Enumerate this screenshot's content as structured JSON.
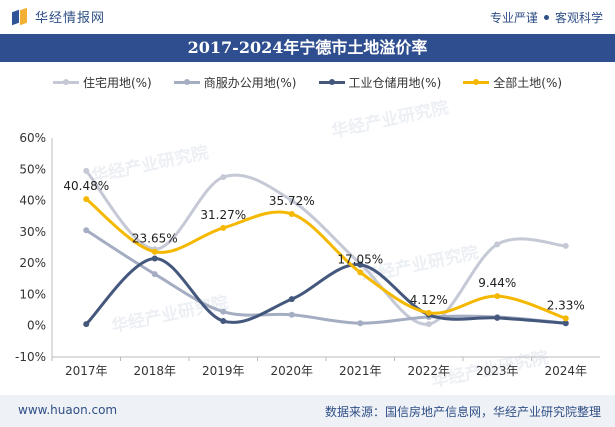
{
  "header": {
    "brand_name": "华经情报网",
    "tagline_left": "专业严谨",
    "tagline_right": "客观科学"
  },
  "watermark": "华经产业研究院",
  "colors": {
    "title_bar": "#2f4e8f",
    "brand": "#2f4f86",
    "footer_bg": "#eef1f6"
  },
  "chart_data": {
    "type": "line",
    "title": "2017-2024年宁德市土地溢价率",
    "categories": [
      "2017年",
      "2018年",
      "2019年",
      "2020年",
      "2021年",
      "2022年",
      "2023年",
      "2024年"
    ],
    "y_ticks": [
      "60%",
      "50%",
      "40%",
      "30%",
      "20%",
      "10%",
      "0%",
      "-10%"
    ],
    "ylim": [
      -10,
      60
    ],
    "y_unit": "%",
    "grid": false,
    "legend_position": "top",
    "series": [
      {
        "name": "住宅用地(%)",
        "color": "#c5c9d6",
        "values": [
          49.5,
          24.5,
          47.5,
          40.0,
          19.8,
          0.5,
          26.0,
          25.5
        ]
      },
      {
        "name": "商服办公用地(%)",
        "color": "#a4adc2",
        "values": [
          30.5,
          16.5,
          4.5,
          3.5,
          0.8,
          2.8,
          2.8,
          0.8
        ]
      },
      {
        "name": "工业仓储用地(%)",
        "color": "#44577c",
        "values": [
          0.5,
          21.5,
          1.5,
          8.5,
          19.5,
          3.5,
          2.5,
          0.8
        ]
      },
      {
        "name": "全部土地(%)",
        "color": "#f5b800",
        "values": [
          40.48,
          23.65,
          31.27,
          35.72,
          17.05,
          4.12,
          9.44,
          2.33
        ],
        "labels": [
          "40.48%",
          "23.65%",
          "31.27%",
          "35.72%",
          "17.05%",
          "4.12%",
          "9.44%",
          "2.33%"
        ]
      }
    ]
  },
  "footer": {
    "site": "www.huaon.com",
    "source": "数据来源：国信房地产信息网，华经产业研究院整理"
  }
}
